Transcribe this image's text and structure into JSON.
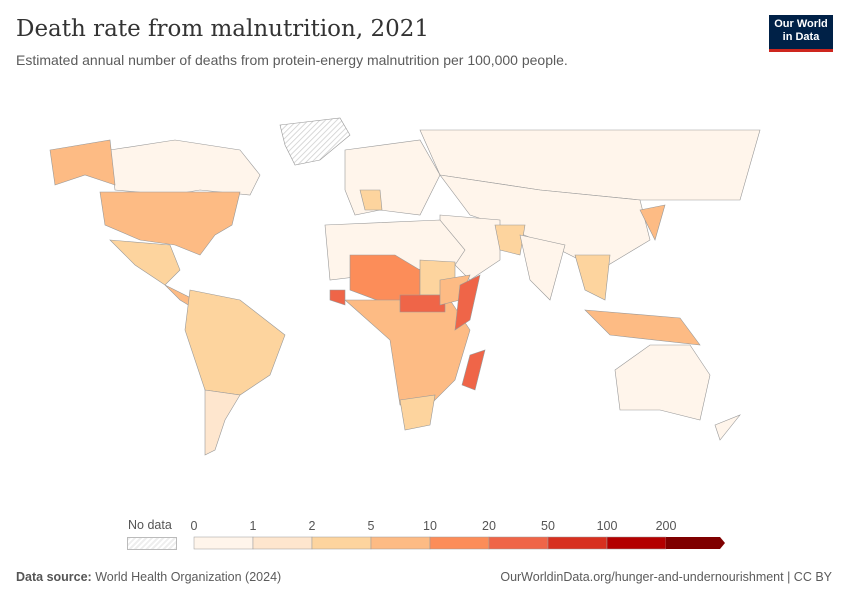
{
  "header": {
    "title": "Death rate from malnutrition, 2021",
    "subtitle": "Estimated annual number of deaths from protein-energy malnutrition per 100,000 people.",
    "logo": "Our World in Data"
  },
  "legend": {
    "no_data": "No data",
    "ticks": [
      "0",
      "1",
      "2",
      "5",
      "10",
      "20",
      "50",
      "100",
      "200"
    ],
    "colors": [
      "#fff5eb",
      "#fee6ce",
      "#fdd49e",
      "#fdbb84",
      "#fc8d59",
      "#ef6548",
      "#d7301f",
      "#b30000",
      "#7f0000"
    ]
  },
  "regions": [
    {
      "name": "Greenland",
      "bin": -1
    },
    {
      "name": "Canada",
      "bin": 0
    },
    {
      "name": "Alaska",
      "bin": 3
    },
    {
      "name": "United States",
      "bin": 3
    },
    {
      "name": "Mexico",
      "bin": 2
    },
    {
      "name": "Central America",
      "bin": 3
    },
    {
      "name": "South America",
      "bin": 2
    },
    {
      "name": "Southern Cone",
      "bin": 1
    },
    {
      "name": "Europe",
      "bin": 0
    },
    {
      "name": "France",
      "bin": 2
    },
    {
      "name": "Russia",
      "bin": 0
    },
    {
      "name": "Central & East Asia",
      "bin": 0
    },
    {
      "name": "Middle East",
      "bin": 0
    },
    {
      "name": "Pakistan/Afghanistan",
      "bin": 2
    },
    {
      "name": "India",
      "bin": 0
    },
    {
      "name": "Southeast Asia",
      "bin": 2
    },
    {
      "name": "Indonesia",
      "bin": 3
    },
    {
      "name": "Japan",
      "bin": 3
    },
    {
      "name": "North Africa",
      "bin": 0
    },
    {
      "name": "Sahel",
      "bin": 4
    },
    {
      "name": "Sudan",
      "bin": 2
    },
    {
      "name": "West Africa coast",
      "bin": 5
    },
    {
      "name": "Central & Southern Africa",
      "bin": 3
    },
    {
      "name": "South Sudan/CAR",
      "bin": 5
    },
    {
      "name": "Ethiopia",
      "bin": 3
    },
    {
      "name": "Somalia",
      "bin": 5
    },
    {
      "name": "South Africa",
      "bin": 2
    },
    {
      "name": "Madagascar",
      "bin": 5
    },
    {
      "name": "Australia",
      "bin": 0
    },
    {
      "name": "New Zealand",
      "bin": 0
    }
  ],
  "footer": {
    "source_label": "Data source:",
    "source": "World Health Organization (2024)",
    "url": "OurWorldinData.org/hunger-and-undernourishment | CC BY"
  }
}
